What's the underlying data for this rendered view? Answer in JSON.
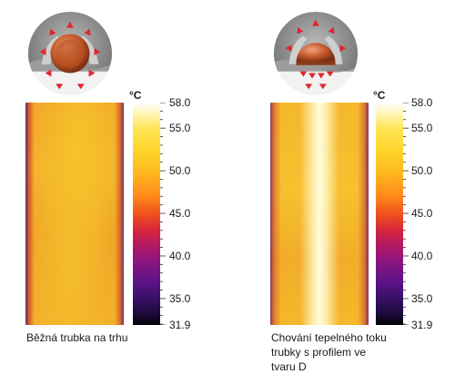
{
  "unit_label": "°C",
  "scale_ticks": [
    "58.0",
    "55.0",
    "50.0",
    "45.0",
    "40.0",
    "35.0",
    "31.9"
  ],
  "scale_values": [
    58.0,
    55.0,
    50.0,
    45.0,
    40.0,
    35.0,
    31.9
  ],
  "scale_min": 31.9,
  "scale_max": 58.0,
  "left": {
    "caption": "Běžná trubka na trhu"
  },
  "right": {
    "caption": "Chování tepelného toku trubky s profilem ve tvaru D"
  },
  "colors": {
    "arrow": "#e0262d",
    "pipe_copper": "#c55a2b",
    "bracket_gray": "#8a8a8a"
  }
}
